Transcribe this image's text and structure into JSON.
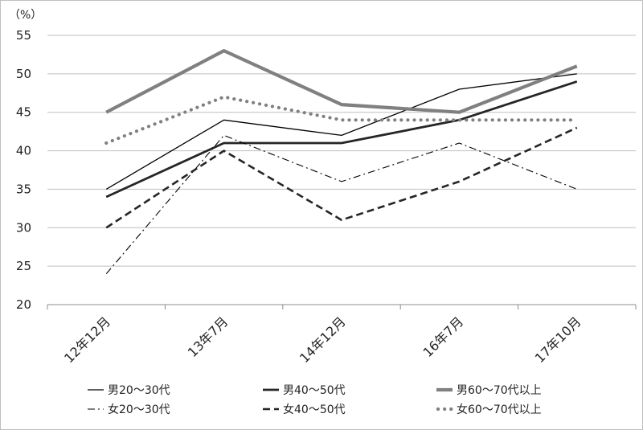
{
  "chart_data": {
    "type": "line",
    "unit_label": "（%）",
    "categories": [
      "12年12月",
      "13年7月",
      "14年12月",
      "16年7月",
      "17年10月"
    ],
    "ylim": [
      20,
      55
    ],
    "yticks": [
      20,
      25,
      30,
      35,
      40,
      45,
      50,
      55
    ],
    "grid": true,
    "legend_position": "bottom",
    "series": [
      {
        "name": "男20〜30代",
        "values": [
          35,
          44,
          42,
          48,
          50
        ],
        "color": "#000000",
        "style": "thin-solid"
      },
      {
        "name": "男40〜50代",
        "values": [
          34,
          41,
          41,
          44,
          49
        ],
        "color": "#262626",
        "style": "thick-solid"
      },
      {
        "name": "男60〜70代以上",
        "values": [
          45,
          53,
          46,
          45,
          51
        ],
        "color": "#808080",
        "style": "gray-thick-solid"
      },
      {
        "name": "女20〜30代",
        "values": [
          24,
          42,
          36,
          41,
          35
        ],
        "color": "#000000",
        "style": "dash-dot"
      },
      {
        "name": "女40〜50代",
        "values": [
          30,
          40,
          31,
          36,
          43
        ],
        "color": "#262626",
        "style": "dashed"
      },
      {
        "name": "女60〜70代以上",
        "values": [
          41,
          47,
          44,
          44,
          44
        ],
        "color": "#808080",
        "style": "dotted"
      }
    ]
  }
}
